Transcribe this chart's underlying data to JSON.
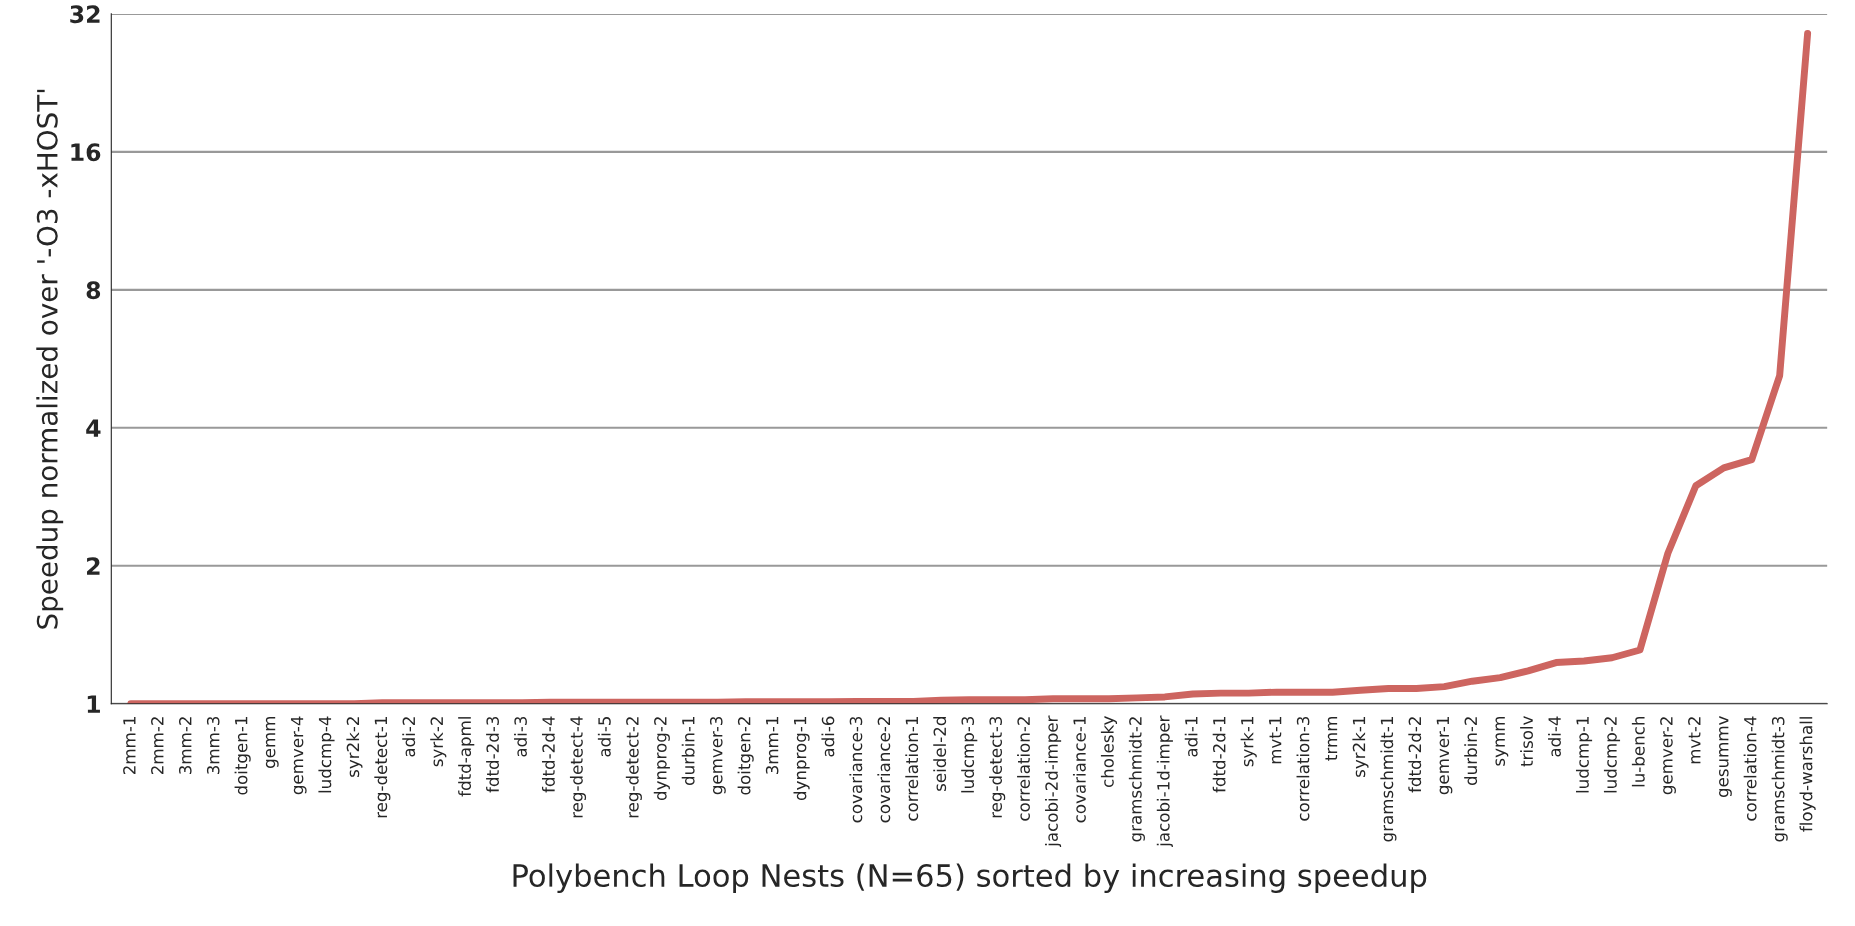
{
  "chart_data": {
    "type": "line",
    "xlabel": "Polybench Loop Nests (N=65) sorted by increasing speedup",
    "ylabel": "Speedup normalized over '-O3 -xHOST'",
    "categories": [
      "2mm-1",
      "2mm-2",
      "3mm-2",
      "3mm-3",
      "doitgen-1",
      "gemm",
      "gemver-4",
      "ludcmp-4",
      "syr2k-2",
      "reg-detect-1",
      "adi-2",
      "syrk-2",
      "fdtd-apml",
      "fdtd-2d-3",
      "adi-3",
      "fdtd-2d-4",
      "reg-detect-4",
      "adi-5",
      "reg-detect-2",
      "dynprog-2",
      "durbin-1",
      "gemver-3",
      "doitgen-2",
      "3mm-1",
      "dynprog-1",
      "adi-6",
      "covariance-3",
      "covariance-2",
      "correlation-1",
      "seidel-2d",
      "ludcmp-3",
      "reg-detect-3",
      "correlation-2",
      "jacobi-2d-imper",
      "covariance-1",
      "cholesky",
      "gramschmidt-2",
      "jacobi-1d-imper",
      "adi-1",
      "fdtd-2d-1",
      "syrk-1",
      "mvt-1",
      "correlation-3",
      "trmm",
      "syr2k-1",
      "gramschmidt-1",
      "fdtd-2d-2",
      "gemver-1",
      "durbin-2",
      "symm",
      "trisolv",
      "adi-4",
      "ludcmp-1",
      "ludcmp-2",
      "lu-bench",
      "gemver-2",
      "mvt-2",
      "gesummv",
      "correlation-4",
      "gramschmidt-3",
      "floyd-warshall"
    ],
    "series": [
      {
        "color": "#cd6560",
        "values": [
          1.0,
          1.0,
          1.0,
          1.0,
          1.0,
          1.0,
          1.0,
          1.0,
          1.0,
          1.005,
          1.005,
          1.005,
          1.005,
          1.005,
          1.005,
          1.008,
          1.008,
          1.008,
          1.008,
          1.008,
          1.008,
          1.008,
          1.01,
          1.01,
          1.01,
          1.01,
          1.012,
          1.012,
          1.012,
          1.018,
          1.02,
          1.02,
          1.02,
          1.025,
          1.025,
          1.025,
          1.03,
          1.035,
          1.05,
          1.055,
          1.055,
          1.06,
          1.06,
          1.06,
          1.07,
          1.08,
          1.08,
          1.09,
          1.12,
          1.14,
          1.18,
          1.23,
          1.24,
          1.26,
          1.31,
          2.13,
          2.99,
          3.27,
          3.41,
          5.2,
          29
        ]
      }
    ],
    "ylim": [
      1,
      32
    ],
    "yticks": [
      1,
      2,
      4,
      8,
      16,
      32
    ],
    "log": "y",
    "grid": "y",
    "marker": "none",
    "line_style": "solid"
  }
}
